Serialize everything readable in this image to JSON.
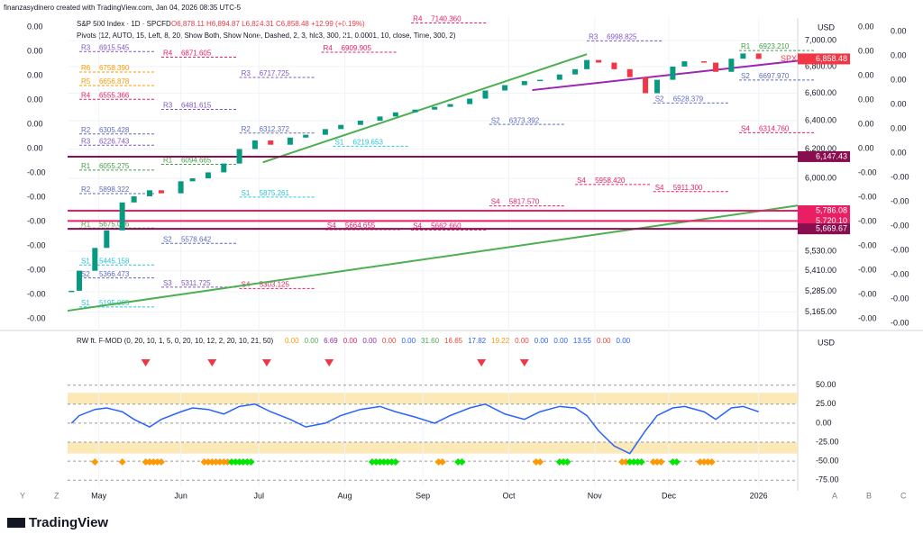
{
  "chart_data": {
    "type": "candlestick",
    "header": "finanzasydinero created with TradingView.com, Jan 04, 2026 08:35 UTC-5",
    "title": "S&P 500 Index · 1D · SPCFD",
    "ohlc_text": "O6,878.11 H6,894.87 L6,824.31 C6,858.48 +12.99 (+0.19%)",
    "pivots_title": "Pivots (12, AUTO, 15, Left, 8, 20, Show Both, Show None, Dashed, 2, 3, hlc3, 300, 21, 0.0001, 10, close, Time, 300, 2)",
    "currency": "USD",
    "symbol": "SPX",
    "last": {
      "value": 6858.48,
      "label": "6,858.48"
    },
    "x": [
      1,
      3,
      7,
      10,
      14,
      17,
      21,
      24,
      29,
      32,
      36,
      40,
      44,
      48,
      52,
      57,
      61,
      66,
      70,
      75,
      80,
      84,
      89,
      94,
      98,
      103,
      107,
      112,
      117,
      121,
      126,
      130,
      133,
      136,
      140,
      144,
      148,
      151,
      155,
      158,
      163,
      166,
      170,
      173,
      177
    ],
    "close": [
      5290,
      5410,
      5550,
      5660,
      5840,
      5880,
      5920,
      5900,
      5980,
      6000,
      6040,
      6100,
      6200,
      6260,
      6230,
      6280,
      6300,
      6340,
      6370,
      6400,
      6430,
      6460,
      6480,
      6500,
      6520,
      6560,
      6620,
      6660,
      6690,
      6700,
      6740,
      6780,
      6850,
      6830,
      6780,
      6720,
      6600,
      6700,
      6800,
      6840,
      6830,
      6760,
      6860,
      6900,
      6858.48
    ],
    "xlim": [
      0,
      187
    ],
    "xticks": [
      {
        "value": 8,
        "label": "May"
      },
      {
        "value": 29,
        "label": "Jun"
      },
      {
        "value": 49,
        "label": "Jul"
      },
      {
        "value": 71,
        "label": "Aug"
      },
      {
        "value": 91,
        "label": "Sep"
      },
      {
        "value": 113,
        "label": "Oct"
      },
      {
        "value": 135,
        "label": "Nov"
      },
      {
        "value": 154,
        "label": "Dec"
      },
      {
        "value": 177,
        "label": "2026"
      }
    ],
    "ylim": [
      5070,
      7180
    ],
    "log": true,
    "yticks": [
      {
        "value": 7000,
        "label": "7,000.00"
      },
      {
        "value": 6800,
        "label": "6,800.00"
      },
      {
        "value": 6600,
        "label": "6,600.00"
      },
      {
        "value": 6400,
        "label": "6,400.00"
      },
      {
        "value": 6200,
        "label": "6,200.00"
      },
      {
        "value": 6000,
        "label": "6,000.00"
      },
      {
        "value": 5530,
        "label": "5,530.00"
      },
      {
        "value": 5410,
        "label": "5,410.00"
      },
      {
        "value": 5285,
        "label": "5,285.00"
      },
      {
        "value": 5165,
        "label": "5,165.00"
      }
    ],
    "levels": [
      {
        "value": 6147.43,
        "label": "6,147.43",
        "color": "#880e4f"
      },
      {
        "value": 5786.08,
        "label": "5,786.08",
        "color": "#e91e63"
      },
      {
        "value": 5720.1,
        "label": "5,720.10",
        "color": "#e91e63"
      },
      {
        "value": 5669.67,
        "label": "5,669.67",
        "color": "#880e4f"
      }
    ],
    "trendlines": [
      {
        "x": [
          0,
          187
        ],
        "values": [
          5173,
          5820
        ],
        "color": "#4caf50"
      },
      {
        "x": [
          50,
          133
        ],
        "values": [
          6108,
          6895
        ],
        "color": "#4caf50"
      },
      {
        "x": [
          119,
          187
        ],
        "values": [
          6623,
          6844
        ],
        "color": "#9c27b0"
      }
    ],
    "pivots": [
      {
        "label": "R3",
        "value": 6915.545,
        "value_label": "6915.545",
        "x": 3,
        "color": "#7e57c2"
      },
      {
        "label": "R4",
        "value": 6871.605,
        "value_label": "6871.605",
        "x": 24,
        "color": "#e91e63"
      },
      {
        "label": "R6",
        "value": 6758.39,
        "value_label": "6758.390",
        "x": 3,
        "color": "#ff9800"
      },
      {
        "label": "R5",
        "value": 6656.878,
        "value_label": "6656.878",
        "x": 3,
        "color": "#ff9800"
      },
      {
        "label": "R4",
        "value": 6555.366,
        "value_label": "6555.366",
        "x": 3,
        "color": "#e91e63"
      },
      {
        "label": "R2",
        "value": 6305.428,
        "value_label": "6305.428",
        "x": 3,
        "color": "#5c6bc0"
      },
      {
        "label": "R3",
        "value": 6226.743,
        "value_label": "6226.743",
        "x": 3,
        "color": "#7e57c2"
      },
      {
        "label": "R1",
        "value": 6055.275,
        "value_label": "6055.275",
        "x": 3,
        "color": "#43a047"
      },
      {
        "label": "R2",
        "value": 5898.322,
        "value_label": "5898.322",
        "x": 3,
        "color": "#5c6bc0"
      },
      {
        "label": "R1",
        "value": 5675.096,
        "value_label": "5675.096",
        "x": 3,
        "color": "#43a047"
      },
      {
        "label": "S1",
        "value": 5445.158,
        "value_label": "5445.158",
        "x": 3,
        "color": "#26c6da"
      },
      {
        "label": "S2",
        "value": 5366.473,
        "value_label": "5366.473",
        "x": 3,
        "color": "#5c6bc0"
      },
      {
        "label": "S1",
        "value": 5195.005,
        "value_label": "5195.005",
        "x": 3,
        "color": "#26c6da"
      },
      {
        "label": "R3",
        "value": 6717.725,
        "value_label": "6717.725",
        "x": 44,
        "color": "#7e57c2"
      },
      {
        "label": "R3",
        "value": 6481.615,
        "value_label": "6481.615",
        "x": 24,
        "color": "#7e57c2"
      },
      {
        "label": "R2",
        "value": 6312.372,
        "value_label": "6312.372",
        "x": 44,
        "color": "#5c6bc0"
      },
      {
        "label": "R1",
        "value": 6094.665,
        "value_label": "6094.665",
        "x": 24,
        "color": "#43a047"
      },
      {
        "label": "S1",
        "value": 5875.261,
        "value_label": "5875.261",
        "x": 44,
        "color": "#26c6da"
      },
      {
        "label": "S2",
        "value": 5578.642,
        "value_label": "5578.642",
        "x": 24,
        "color": "#5c6bc0"
      },
      {
        "label": "S3",
        "value": 5311.725,
        "value_label": "5311.725",
        "x": 24,
        "color": "#7e57c2"
      },
      {
        "label": "S4",
        "value": 5303.125,
        "value_label": "5303.125",
        "x": 44,
        "color": "#e91e63"
      },
      {
        "label": "R4",
        "value": 6909.905,
        "value_label": "6909.905",
        "x": 65,
        "color": "#e91e63"
      },
      {
        "label": "R4",
        "value": 7140.36,
        "value_label": "7140.360",
        "x": 88,
        "color": "#e91e63"
      },
      {
        "label": "S1",
        "value": 6219.653,
        "value_label": "6219.653",
        "x": 68,
        "color": "#26c6da"
      },
      {
        "label": "S4",
        "value": 5664.655,
        "value_label": "5664.655",
        "x": 66,
        "color": "#e91e63"
      },
      {
        "label": "S4",
        "value": 5662.66,
        "value_label": "5662.660",
        "x": 88,
        "color": "#e91e63"
      },
      {
        "label": "S2",
        "value": 6373.392,
        "value_label": "6373.392",
        "x": 108,
        "color": "#5c6bc0"
      },
      {
        "label": "S4",
        "value": 5817.57,
        "value_label": "5817.570",
        "x": 108,
        "color": "#e91e63"
      },
      {
        "label": "S4",
        "value": 5958.42,
        "value_label": "5958.420",
        "x": 130,
        "color": "#e91e63"
      },
      {
        "label": "R3",
        "value": 6998.825,
        "value_label": "6998.825",
        "x": 133,
        "color": "#7e57c2"
      },
      {
        "label": "S2",
        "value": 6528.379,
        "value_label": "6528.379",
        "x": 150,
        "color": "#5c6bc0"
      },
      {
        "label": "S4",
        "value": 5911.3,
        "value_label": "5911.300",
        "x": 150,
        "color": "#e91e63"
      },
      {
        "label": "R1",
        "value": 6923.21,
        "value_label": "6923.210",
        "x": 172,
        "color": "#43a047"
      },
      {
        "label": "S2",
        "value": 6697.97,
        "value_label": "6697.970",
        "x": 172,
        "color": "#5c6bc0"
      },
      {
        "label": "S4",
        "value": 6314.76,
        "value_label": "6314.760",
        "x": 172,
        "color": "#e91e63"
      }
    ],
    "left_scale": [
      {
        "value": 0,
        "label": "0.00"
      },
      {
        "value": 0,
        "label": "0.00"
      },
      {
        "value": 0,
        "label": "0.00"
      },
      {
        "value": 0,
        "label": "0.00"
      },
      {
        "value": 0,
        "label": "0.00"
      },
      {
        "value": 0,
        "label": "0.00"
      },
      {
        "value": 0,
        "label": "-0.00"
      },
      {
        "value": 0,
        "label": "-0.00"
      },
      {
        "value": 0,
        "label": "-0.00"
      },
      {
        "value": 0,
        "label": "-0.00"
      },
      {
        "value": 0,
        "label": "-0.00"
      },
      {
        "value": 0,
        "label": "-0.00"
      },
      {
        "value": 0,
        "label": "-0.00"
      }
    ],
    "right_scale": [
      {
        "value": 0,
        "label": "0.00"
      },
      {
        "value": 0,
        "label": "0.00"
      },
      {
        "value": 0,
        "label": "0.00"
      },
      {
        "value": 0,
        "label": "0.00"
      },
      {
        "value": 0,
        "label": "0.00"
      },
      {
        "value": 0,
        "label": "0.00"
      },
      {
        "value": 0,
        "label": "-0.00"
      },
      {
        "value": 0,
        "label": "-0.00"
      },
      {
        "value": 0,
        "label": "-0.00"
      },
      {
        "value": 0,
        "label": "-0.00"
      },
      {
        "value": 0,
        "label": "-0.00"
      },
      {
        "value": 0,
        "label": "-0.00"
      },
      {
        "value": 0,
        "label": "-0.00"
      }
    ],
    "indicator": {
      "title": "RW ft. F-MOD (0, 20, 10, 1, 5, 0, 20, 10, 12, 2, 20, 10, 21, 50)",
      "legend_values": [
        0,
        0,
        6.69,
        0,
        0,
        0,
        0,
        31.6,
        16.65,
        17.82,
        19.22,
        0,
        0,
        0,
        13.55,
        0,
        0
      ],
      "legend_labels": [
        "0.00",
        "0.00",
        "6.69",
        "0.00",
        "0.00",
        "0.00",
        "0.00",
        "31.60",
        "16.65",
        "17.82",
        "19.22",
        "0.00",
        "0.00",
        "0.00",
        "13.55",
        "0.00",
        "0.00"
      ],
      "legend_colors": [
        "#ff9800",
        "#4caf50",
        "#9c27b0",
        "#e91e63",
        "#9c27b0",
        "#f44336",
        "#2962ff",
        "#4caf50",
        "#f44336",
        "#2962ff",
        "#ff9800",
        "#f44336",
        "#2962ff",
        "#2962ff",
        "#2962ff",
        "#f44336",
        "#2962ff"
      ],
      "ylim": [
        -83,
        97
      ],
      "yticks": [
        {
          "value": 50,
          "label": "50.00"
        },
        {
          "value": 25,
          "label": "25.00"
        },
        {
          "value": 0,
          "label": "0.00"
        },
        {
          "value": -25,
          "label": "-25.00"
        },
        {
          "value": -50,
          "label": "-50.00"
        },
        {
          "value": -75,
          "label": "-75.00"
        }
      ],
      "zones": [
        [
          25,
          40
        ],
        [
          -25,
          -40
        ]
      ],
      "series": [
        {
          "color": "#2962ff",
          "values": [
            0,
            10,
            18,
            20,
            15,
            5,
            -5,
            5,
            15,
            20,
            18,
            12,
            22,
            25,
            15,
            5,
            -5,
            0,
            10,
            18,
            22,
            15,
            8,
            0,
            10,
            20,
            25,
            12,
            5,
            15,
            22,
            20,
            10,
            -10,
            -30,
            -40,
            -10,
            10,
            20,
            22,
            15,
            5,
            20,
            22,
            15
          ]
        }
      ],
      "orange_markers": [
        7,
        14,
        20,
        21,
        22,
        23,
        24,
        35,
        36,
        37,
        38,
        39,
        40,
        41,
        95,
        96,
        120,
        121,
        142,
        143,
        150,
        151,
        152,
        162,
        163,
        164,
        165
      ],
      "green_markers": [
        42,
        43,
        44,
        45,
        46,
        47,
        78,
        79,
        80,
        81,
        82,
        83,
        84,
        100,
        101,
        126,
        127,
        128,
        144,
        145,
        146,
        147,
        155,
        156
      ],
      "triangles": [
        20,
        37,
        51,
        67,
        106,
        117
      ]
    },
    "bottom_left": [
      "Y",
      "Z"
    ],
    "bottom_right": [
      "A",
      "B",
      "C"
    ],
    "brand": "TradingView"
  }
}
